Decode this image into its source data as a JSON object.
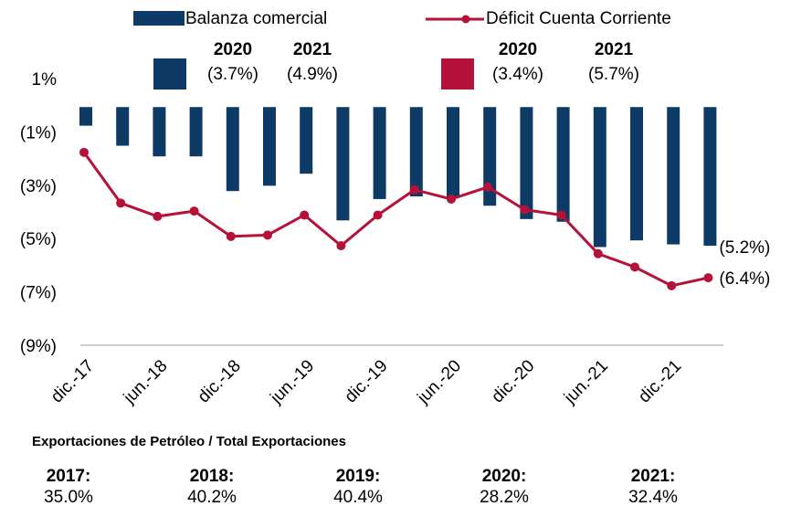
{
  "chart_data": {
    "type": "bar-line",
    "categories": [
      "dic.-17",
      null,
      "jun.-18",
      null,
      "dic.-18",
      null,
      "jun.-19",
      null,
      "dic.-19",
      null,
      "jun.-20",
      null,
      "dic.-20",
      null,
      "jun.-21",
      null,
      "dic.-21",
      null
    ],
    "series": [
      {
        "name": "Balanza comercial",
        "type": "bar",
        "color": "#0e3a66",
        "values": [
          -0.7,
          -1.45,
          -1.85,
          -1.85,
          -3.15,
          -2.95,
          -2.5,
          -4.25,
          -3.45,
          -3.35,
          -3.4,
          -3.7,
          -4.2,
          -4.3,
          -5.25,
          -5.0,
          -5.15,
          -5.2
        ],
        "value_labels": [
          null,
          null,
          null,
          null,
          null,
          null,
          null,
          null,
          null,
          null,
          null,
          null,
          null,
          null,
          null,
          null,
          null,
          "(5.2%)"
        ]
      },
      {
        "name": "Déficit Cuenta Corriente",
        "type": "line",
        "color": "#b5123a",
        "values": [
          -1.7,
          -3.6,
          -4.1,
          -3.9,
          -4.85,
          -4.8,
          -4.05,
          -5.2,
          -4.05,
          -3.1,
          -3.45,
          -3.0,
          -3.85,
          -4.05,
          -5.5,
          -6.0,
          -6.7,
          -6.4
        ],
        "value_labels": [
          null,
          null,
          null,
          null,
          null,
          null,
          null,
          null,
          null,
          null,
          null,
          null,
          null,
          null,
          null,
          null,
          null,
          "(6.4%)"
        ]
      }
    ],
    "ylim": [
      -9,
      1
    ],
    "yticks": [
      {
        "value": 1,
        "label": "1%"
      },
      {
        "value": -1,
        "label": "(1%)"
      },
      {
        "value": -3,
        "label": "(3%)"
      },
      {
        "value": -5,
        "label": "(5%)"
      },
      {
        "value": -7,
        "label": "(7%)"
      },
      {
        "value": -9,
        "label": "(9%)"
      }
    ],
    "annotations": [
      {
        "years": [
          "2020",
          "2021"
        ],
        "labels": [
          "(3.7%)",
          "(4.9%)"
        ]
      },
      {
        "years": [
          "2020",
          "2021"
        ],
        "labels": [
          "(3.4%)",
          "(5.7%)"
        ]
      }
    ]
  },
  "footer": {
    "title": "Exportaciones de Petróleo / Total Exportaciones",
    "items": [
      {
        "year": "2017:",
        "value": "35.0%"
      },
      {
        "year": "2018:",
        "value": "40.2%"
      },
      {
        "year": "2019:",
        "value": "40.4%"
      },
      {
        "year": "2020:",
        "value": "28.2%"
      },
      {
        "year": "2021:",
        "value": "32.4%"
      }
    ]
  }
}
